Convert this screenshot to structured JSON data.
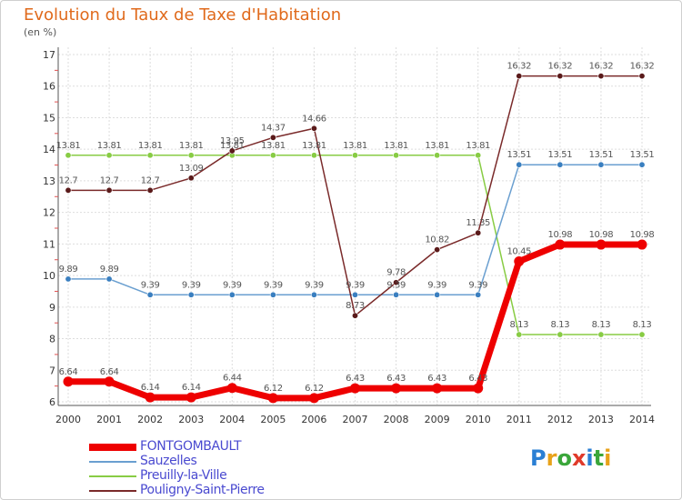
{
  "title": "Evolution du Taux de Taxe d'Habitation",
  "unit_label": "(en %)",
  "logo": {
    "letters": [
      {
        "ch": "P",
        "color": "#2a7fd4"
      },
      {
        "ch": "r",
        "color": "#e8a21a"
      },
      {
        "ch": "o",
        "color": "#3aa63a"
      },
      {
        "ch": "x",
        "color": "#e03a2a"
      },
      {
        "ch": "i",
        "color": "#2a7fd4"
      },
      {
        "ch": "t",
        "color": "#3aa63a"
      },
      {
        "ch": "i",
        "color": "#e8a21a"
      }
    ]
  },
  "chart_data": {
    "type": "line",
    "title": "Evolution du Taux de Taxe d'Habitation",
    "ylabel": "(en %)",
    "xlabel": "",
    "ylim": [
      6,
      17
    ],
    "yticks": [
      "6",
      "7",
      "8",
      "9",
      "10",
      "11",
      "12",
      "13",
      "14",
      "15",
      "16",
      "17"
    ],
    "x": [
      "2000",
      "2001",
      "2002",
      "2003",
      "2004",
      "2005",
      "2006",
      "2007",
      "2008",
      "2009",
      "2010",
      "2011",
      "2012",
      "2013",
      "2014"
    ],
    "grid": true,
    "legend_position": "bottom-left",
    "series": [
      {
        "name": "Preuilly-la-Ville",
        "color": "#88cc44",
        "marker": "#88cc44",
        "width": 1.5,
        "values": [
          13.81,
          13.81,
          13.81,
          13.81,
          13.81,
          13.81,
          13.81,
          13.81,
          13.81,
          13.81,
          13.81,
          8.13,
          8.13,
          8.13,
          8.13
        ],
        "labels": [
          "13.81",
          "13.81",
          "13.81",
          "13.81",
          "13.81",
          "13.81",
          "13.81",
          "13.81",
          "13.81",
          "13.81",
          "13.81",
          "8.13",
          "8.13",
          "8.13",
          "8.13"
        ]
      },
      {
        "name": "Sauzelles",
        "color": "#6a9fd0",
        "marker": "#3a7fc0",
        "width": 1.5,
        "values": [
          9.89,
          9.89,
          9.39,
          9.39,
          9.39,
          9.39,
          9.39,
          9.39,
          9.39,
          9.39,
          9.39,
          13.51,
          13.51,
          13.51,
          13.51
        ],
        "labels": [
          "9.89",
          "9.89",
          "9.39",
          "9.39",
          "9.39",
          "9.39",
          "9.39",
          "9.39",
          "9.39",
          "9.39",
          "9.39",
          "13.51",
          "13.51",
          "13.51",
          "13.51"
        ]
      },
      {
        "name": "Pouligny-Saint-Pierre",
        "color": "#7a2a2a",
        "marker": "#5a1a1a",
        "width": 1.5,
        "values": [
          12.7,
          12.7,
          12.7,
          13.09,
          13.95,
          14.37,
          14.66,
          8.73,
          9.78,
          10.82,
          11.35,
          16.32,
          16.32,
          16.32,
          16.32
        ],
        "labels": [
          "12.7",
          "12.7",
          "12.7",
          "13.09",
          "13.95",
          "14.37",
          "14.66",
          "8.73",
          "9.78",
          "10.82",
          "11.35",
          "16.32",
          "16.32",
          "16.32",
          "16.32"
        ]
      },
      {
        "name": "FONTGOMBAULT",
        "color": "#ee0000",
        "marker": "#ee0000",
        "width": 7,
        "values": [
          6.64,
          6.64,
          6.14,
          6.14,
          6.44,
          6.12,
          6.12,
          6.43,
          6.43,
          6.43,
          6.43,
          10.45,
          10.98,
          10.98,
          10.98
        ],
        "labels": [
          "6.64",
          "6.64",
          "6.14",
          "6.14",
          "6.44",
          "6.12",
          "6.12",
          "6.43",
          "6.43",
          "6.43",
          "6.43",
          "10.45",
          "10.98",
          "10.98",
          "10.98"
        ]
      }
    ],
    "legend": [
      {
        "name": "FONTGOMBAULT",
        "color": "#ee0000",
        "width": 8
      },
      {
        "name": "Sauzelles",
        "color": "#6a9fd0",
        "width": 2
      },
      {
        "name": "Preuilly-la-Ville",
        "color": "#88cc44",
        "width": 2
      },
      {
        "name": "Pouligny-Saint-Pierre",
        "color": "#7a2a2a",
        "width": 2
      }
    ]
  }
}
